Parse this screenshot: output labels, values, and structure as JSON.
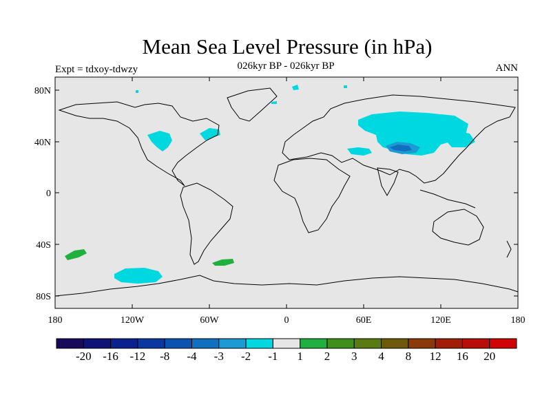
{
  "header": {
    "title": "Mean Sea Level Pressure (in hPa)",
    "subtitle": "026kyr BP - 026kyr BP",
    "experiment": "Expt = tdxoy-tdwzy",
    "season": "ANN"
  },
  "axes": {
    "y_ticks": [
      "80N",
      "40N",
      "0",
      "40S",
      "80S"
    ],
    "x_ticks": [
      "180",
      "120W",
      "60W",
      "0",
      "60E",
      "120E",
      "180"
    ]
  },
  "map": {
    "projection": "cylindrical-equidistant",
    "land_outline_color": "#000000",
    "background_color": "#e6e6e6",
    "anomaly_regions": [
      {
        "name": "north-america-west",
        "level": -1
      },
      {
        "name": "north-atlantic-coast",
        "level": -1
      },
      {
        "name": "central-asia",
        "level": -1
      },
      {
        "name": "tibet-core",
        "level": -2
      },
      {
        "name": "tibet-center",
        "level": -3
      },
      {
        "name": "south-pacific-east",
        "level": 1
      },
      {
        "name": "south-atlantic",
        "level": 1
      },
      {
        "name": "southern-ocean-pacific",
        "level": -1
      }
    ]
  },
  "colorbar": {
    "labels": [
      "-20",
      "-16",
      "-12",
      "-8",
      "-4",
      "-3",
      "-2",
      "-1",
      "1",
      "2",
      "3",
      "4",
      "8",
      "12",
      "16",
      "20"
    ],
    "colors": [
      "#1a0a5c",
      "#0d1475",
      "#0a228e",
      "#0a38a0",
      "#0c52b0",
      "#1070bf",
      "#1c9ad2",
      "#00d8e0",
      "#e6e6e6",
      "#20b040",
      "#3f8f1f",
      "#5a7a14",
      "#6e5a0a",
      "#8a3a08",
      "#a01e08",
      "#b80e08",
      "#d00404"
    ]
  }
}
